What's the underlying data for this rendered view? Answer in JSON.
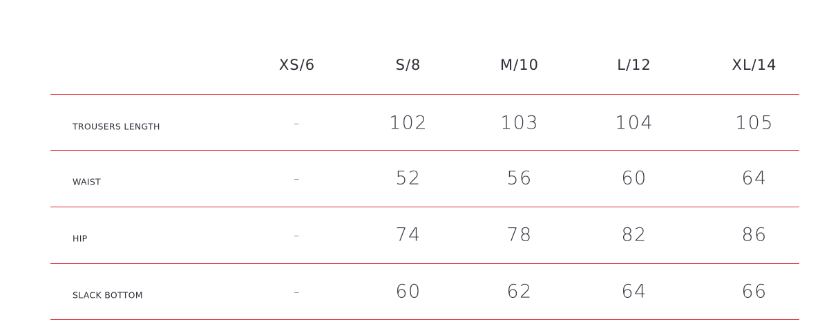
{
  "table": {
    "columns": [
      "XS/6",
      "S/8",
      "M/10",
      "L/12",
      "XL/14"
    ],
    "rows": [
      {
        "label": "TROUSERS LENGTH",
        "values": [
          "–",
          "102",
          "103",
          "104",
          "105"
        ]
      },
      {
        "label": "WAIST",
        "values": [
          "–",
          "52",
          "56",
          "60",
          "64"
        ]
      },
      {
        "label": "HIP",
        "values": [
          "–",
          "74",
          "78",
          "82",
          "86"
        ]
      },
      {
        "label": "SLACK BOTTOM",
        "values": [
          "–",
          "60",
          "62",
          "64",
          "66"
        ]
      }
    ],
    "divider_color": "#e0252d"
  }
}
